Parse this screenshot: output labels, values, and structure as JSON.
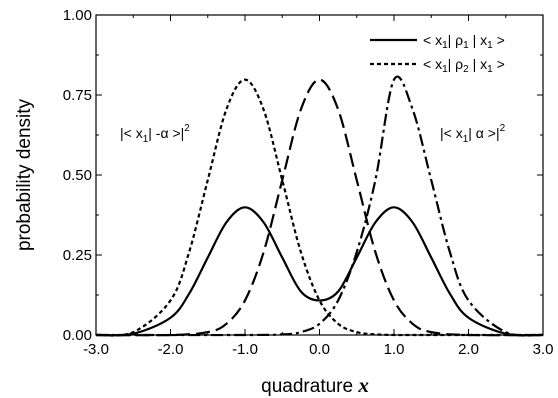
{
  "chart_data": {
    "type": "line",
    "title": "",
    "xlabel": "quadrature",
    "xlabel_variable": "x",
    "ylabel": "probability density",
    "xlim": [
      -3.0,
      3.0
    ],
    "ylim": [
      0.0,
      1.0
    ],
    "x_ticks": [
      "-3.0",
      "-2.0",
      "-1.0",
      "0.0",
      "1.0",
      "2.0",
      "3.0"
    ],
    "y_ticks": [
      "0.00",
      "0.25",
      "0.50",
      "0.75",
      "1.00"
    ],
    "grid": false,
    "legend_position": "top-right",
    "series": [
      {
        "name": "< x1| ρ1 | x1 >",
        "style": "solid",
        "x": [
          -3.0,
          -2.5,
          -2.0,
          -1.75,
          -1.5,
          -1.25,
          -1.0,
          -0.75,
          -0.5,
          -0.25,
          0.0,
          0.25,
          0.5,
          0.75,
          1.0,
          1.25,
          1.5,
          1.75,
          2.0,
          2.5,
          3.0
        ],
        "y": [
          0.0,
          0.004,
          0.054,
          0.129,
          0.242,
          0.352,
          0.399,
          0.352,
          0.242,
          0.136,
          0.108,
          0.136,
          0.242,
          0.352,
          0.399,
          0.352,
          0.242,
          0.129,
          0.054,
          0.004,
          0.0
        ]
      },
      {
        "name": "< x1| ρ2 | x1 >",
        "style": "dotted",
        "x": [
          -3.0,
          -2.5,
          -2.0,
          -1.75,
          -1.5,
          -1.25,
          -1.0,
          -0.75,
          -0.5,
          -0.25,
          0.0,
          0.25,
          0.5,
          0.75,
          1.0,
          1.25,
          1.5,
          1.75,
          2.0,
          2.5,
          3.0
        ],
        "y": [
          0.0,
          0.009,
          0.108,
          0.259,
          0.484,
          0.705,
          0.798,
          0.704,
          0.484,
          0.259,
          0.108,
          0.035,
          0.009,
          0.002,
          0.0,
          0.0,
          0.0,
          0.0,
          0.0,
          0.0,
          0.0
        ]
      },
      {
        "name": "",
        "style": "dashed",
        "x": [
          -3.0,
          -2.0,
          -1.5,
          -1.25,
          -1.0,
          -0.75,
          -0.5,
          -0.25,
          0.0,
          0.25,
          0.5,
          0.75,
          1.0,
          1.25,
          1.5,
          2.0,
          3.0
        ],
        "y": [
          0.0,
          0.0,
          0.009,
          0.035,
          0.108,
          0.259,
          0.484,
          0.705,
          0.798,
          0.705,
          0.484,
          0.259,
          0.108,
          0.035,
          0.009,
          0.0,
          0.0
        ]
      },
      {
        "name": "",
        "style": "dash-dot",
        "x": [
          -3.0,
          -1.0,
          -0.5,
          -0.25,
          0.0,
          0.25,
          0.5,
          0.75,
          1.0,
          1.25,
          1.5,
          1.75,
          2.0,
          2.5,
          3.0
        ],
        "y": [
          0.0,
          0.0,
          0.002,
          0.009,
          0.035,
          0.108,
          0.259,
          0.484,
          0.798,
          0.705,
          0.484,
          0.259,
          0.108,
          0.009,
          0.0
        ]
      }
    ],
    "legend": [
      {
        "prefix": "< x",
        "sub1": "1",
        "mid": "| ρ",
        "sub2": "1",
        "mid2": " | x",
        "sub3": "1",
        "suffix": " >",
        "style": "solid"
      },
      {
        "prefix": "< x",
        "sub1": "1",
        "mid": "| ρ",
        "sub2": "2",
        "mid2": " | x",
        "sub3": "1",
        "suffix": " >",
        "style": "dotted"
      }
    ],
    "annotations": {
      "left": {
        "prefix": "|< x",
        "sub": "1",
        "middle": "| -α >|",
        "sup": "2"
      },
      "right": {
        "prefix": "|< x",
        "sub": "1",
        "middle": "| α >|",
        "sup": "2"
      }
    }
  }
}
